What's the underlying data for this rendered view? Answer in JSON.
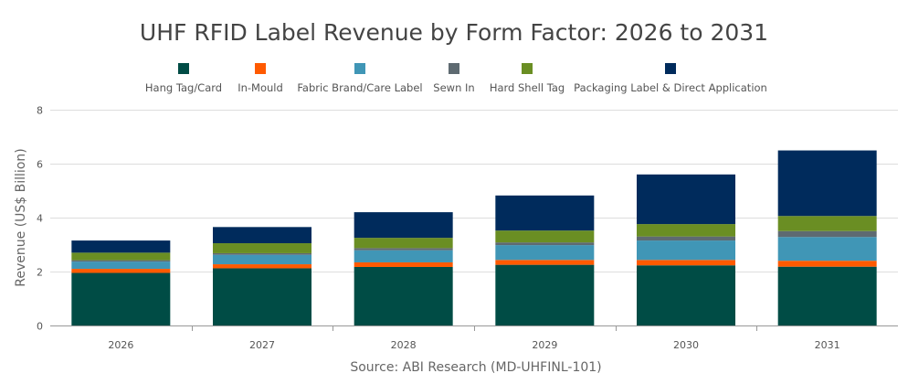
{
  "chart_data": {
    "type": "bar",
    "stacked": true,
    "title": "UHF RFID Label Revenue by Form Factor: 2026 to 2031",
    "ylabel": "Revenue (US$ Billion)",
    "source": "Source: ABI Research (MD-UHFINL-101)",
    "categories": [
      "2026",
      "2027",
      "2028",
      "2029",
      "2030",
      "2031"
    ],
    "ylim": [
      0,
      8
    ],
    "yticks": [
      0,
      2,
      4,
      6,
      8
    ],
    "grid": true,
    "legend_position": "top-center",
    "series": [
      {
        "name": "Hang Tag/Card",
        "color": "#004c45",
        "values": [
          1.95,
          2.12,
          2.17,
          2.25,
          2.23,
          2.18
        ]
      },
      {
        "name": "In-Mould",
        "color": "#ff5a00",
        "values": [
          0.15,
          0.15,
          0.17,
          0.18,
          0.2,
          0.22
        ]
      },
      {
        "name": "Fabric Brand/Care Label",
        "color": "#4096b6",
        "values": [
          0.27,
          0.35,
          0.45,
          0.55,
          0.72,
          0.88
        ]
      },
      {
        "name": "Sewn In",
        "color": "#5e6a71",
        "values": [
          0.05,
          0.06,
          0.08,
          0.1,
          0.15,
          0.22
        ]
      },
      {
        "name": "Hard Shell Tag",
        "color": "#6a8e23",
        "values": [
          0.28,
          0.37,
          0.38,
          0.44,
          0.46,
          0.56
        ]
      },
      {
        "name": "Packaging Label & Direct Application",
        "color": "#002b5c",
        "values": [
          0.45,
          0.6,
          0.95,
          1.3,
          1.84,
          2.43
        ]
      }
    ]
  }
}
